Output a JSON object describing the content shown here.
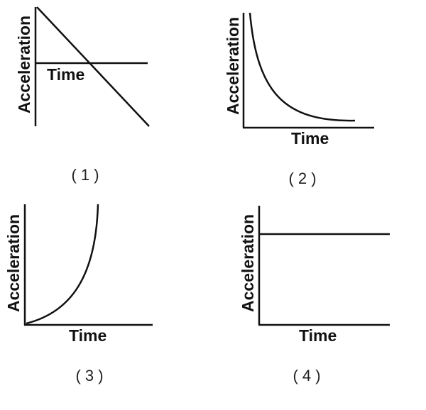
{
  "graphs": [
    {
      "caption": "( 1 )",
      "y_label": "Acceleration",
      "x_label": "Time",
      "shape": "linear-decrease-crossing-time-axis"
    },
    {
      "caption": "( 2 )",
      "y_label": "Acceleration",
      "x_label": "Time",
      "shape": "decay-curve"
    },
    {
      "caption": "( 3 )",
      "y_label": "Acceleration",
      "x_label": "Time",
      "shape": "growth-curve"
    },
    {
      "caption": "( 4 )",
      "y_label": "Acceleration",
      "x_label": "Time",
      "shape": "constant"
    }
  ],
  "colors": {
    "ink": "#111111",
    "background": "#ffffff"
  }
}
